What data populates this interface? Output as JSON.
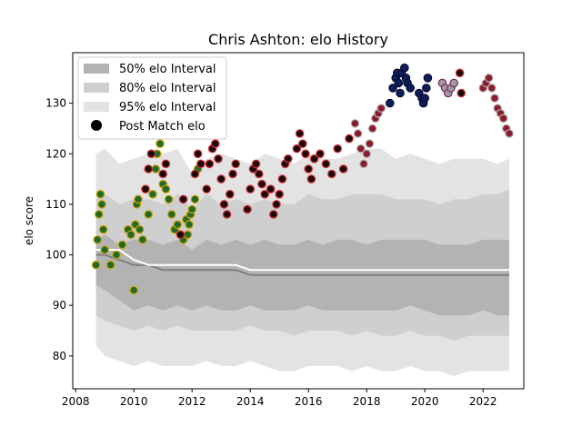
{
  "chart_data": {
    "type": "scatter",
    "title": "Chris Ashton: elo History",
    "xlabel": "",
    "ylabel": "elo score",
    "xlim": [
      2007.9,
      2023.4
    ],
    "ylim": [
      73.5,
      140.0
    ],
    "x_ticks": [
      2008,
      2010,
      2012,
      2014,
      2016,
      2018,
      2020,
      2022
    ],
    "y_ticks": [
      80,
      90,
      100,
      110,
      120,
      130
    ],
    "legend": {
      "placement": "top-left",
      "entries": [
        "50% elo Interval",
        "80% elo Interval",
        "95% elo Interval",
        "Post Match elo"
      ]
    },
    "colors": {
      "band_50": "#b3b3b3",
      "band_80": "#cfcfcf",
      "band_95": "#e3e3e3",
      "median": "#7f7f7f",
      "mean_line": "#ffffff",
      "green_fill": "#1f6b2a",
      "green_edge": "#d4a100",
      "black_fill": "#1a0a0a",
      "black_edge": "#d8323c",
      "maroon_fill": "#8c1c2c",
      "maroon_edge": "#b0b0b0",
      "navy_fill": "#0c1f5c",
      "navy_edge": "#0a0a2a",
      "grey_fill": "#9a9aa8",
      "grey_edge": "#7a2a4a"
    },
    "bands": {
      "x": [
        2008.7,
        2009.0,
        2009.5,
        2010.0,
        2010.5,
        2011.0,
        2011.5,
        2012.0,
        2012.5,
        2013.0,
        2013.5,
        2014.0,
        2014.5,
        2015.0,
        2015.5,
        2016.0,
        2016.5,
        2017.0,
        2017.5,
        2018.0,
        2018.5,
        2019.0,
        2019.5,
        2020.0,
        2020.5,
        2021.0,
        2021.5,
        2022.0,
        2022.5,
        2022.9
      ],
      "p95_upper": [
        120,
        121,
        118,
        119,
        120,
        120,
        121,
        116,
        119,
        120,
        119,
        118,
        120,
        119,
        118,
        120,
        119,
        119,
        120,
        121,
        121,
        119,
        120,
        119,
        118,
        119,
        119,
        119,
        118,
        119
      ],
      "p80_upper": [
        111,
        112,
        110,
        111,
        111,
        110,
        112,
        109,
        112,
        110,
        111,
        110,
        111,
        110,
        110,
        112,
        111,
        111,
        112,
        112,
        112,
        111,
        111,
        111,
        110,
        111,
        111,
        112,
        112,
        113
      ],
      "p50_upper": [
        103,
        104,
        102,
        103,
        103,
        102,
        103,
        101,
        103,
        102,
        103,
        102,
        103,
        102,
        102,
        103,
        102,
        103,
        103,
        102,
        103,
        103,
        103,
        103,
        102,
        102,
        102,
        103,
        103,
        103
      ],
      "p50_lower": [
        94,
        93,
        91,
        89,
        90,
        89,
        90,
        89,
        90,
        89,
        89,
        90,
        89,
        89,
        89,
        90,
        89,
        89,
        89,
        89,
        89,
        89,
        90,
        89,
        88,
        88,
        88,
        89,
        88,
        88
      ],
      "p80_lower": [
        88,
        87,
        86,
        85,
        86,
        85,
        86,
        85,
        85,
        85,
        85,
        86,
        85,
        85,
        84,
        85,
        85,
        85,
        84,
        85,
        84,
        84,
        85,
        84,
        84,
        83,
        84,
        84,
        84,
        84
      ],
      "p95_lower": [
        82,
        80,
        79,
        78,
        79,
        78,
        78,
        78,
        79,
        78,
        78,
        79,
        78,
        77,
        77,
        78,
        78,
        78,
        77,
        78,
        77,
        77,
        78,
        77,
        77,
        76,
        77,
        77,
        77,
        77
      ],
      "median": [
        100,
        100,
        99,
        98,
        98,
        97,
        97,
        97,
        97,
        97,
        97,
        96,
        96,
        96,
        96,
        96,
        96,
        96,
        96,
        96,
        96,
        96,
        96,
        96,
        96,
        96,
        96,
        96,
        96,
        96
      ],
      "mean": [
        101,
        101,
        101,
        99,
        98,
        98,
        98,
        98,
        98,
        98,
        98,
        97,
        97,
        97,
        97,
        97,
        97,
        97,
        97,
        97,
        97,
        97,
        97,
        97,
        97,
        97,
        97,
        97,
        97,
        97
      ]
    },
    "series": [
      {
        "style": "green",
        "x": [
          2008.7,
          2008.75,
          2008.8,
          2008.85,
          2008.9,
          2008.95,
          2009.0,
          2009.2,
          2009.4,
          2009.6,
          2009.8,
          2009.9,
          2010.0,
          2010.05,
          2010.1,
          2010.15,
          2010.2,
          2010.3,
          2010.5,
          2010.65,
          2010.75,
          2010.8,
          2010.9,
          2011.0,
          2011.1,
          2011.2,
          2011.3,
          2011.4,
          2011.5,
          2011.6,
          2011.7,
          2011.8,
          2011.85,
          2011.9,
          2011.95,
          2012.0,
          2012.1,
          2012.2
        ],
        "y": [
          98,
          103,
          108,
          112,
          110,
          105,
          101,
          98,
          100,
          102,
          105,
          104,
          93,
          106,
          110,
          111,
          105,
          103,
          108,
          112,
          117,
          120,
          122,
          114,
          113,
          111,
          108,
          105,
          106,
          104,
          103,
          107,
          104,
          106,
          108,
          109,
          111,
          117
        ]
      },
      {
        "style": "black",
        "x": [
          2010.4,
          2010.5,
          2010.6,
          2011.0,
          2011.1,
          2011.6,
          2011.7,
          2012.1,
          2012.2,
          2012.3,
          2012.5,
          2012.6,
          2012.7,
          2012.8,
          2012.9,
          2013.0,
          2013.1,
          2013.2,
          2013.3,
          2013.4,
          2013.5,
          2013.9,
          2014.0,
          2014.1,
          2014.2,
          2014.3,
          2014.4,
          2014.5,
          2014.7,
          2014.8,
          2014.9,
          2015.0,
          2015.1,
          2015.2,
          2015.3,
          2015.6,
          2015.7,
          2015.8,
          2015.9,
          2016.0,
          2016.1,
          2016.2,
          2016.4,
          2016.6,
          2016.8,
          2017.0,
          2017.2,
          2017.4
        ],
        "y": [
          113,
          117,
          120,
          116,
          118,
          104,
          111,
          116,
          120,
          118,
          113,
          118,
          121,
          122,
          119,
          115,
          110,
          108,
          112,
          116,
          118,
          109,
          113,
          117,
          118,
          116,
          114,
          112,
          113,
          108,
          110,
          112,
          115,
          118,
          119,
          121,
          124,
          122,
          120,
          117,
          115,
          119,
          120,
          118,
          116,
          121,
          117,
          123
        ]
      },
      {
        "style": "maroon",
        "x": [
          2017.6,
          2017.7,
          2017.8,
          2017.9,
          2018.0,
          2018.1,
          2018.2,
          2018.3,
          2018.4,
          2018.5
        ],
        "y": [
          126,
          124,
          121,
          118,
          120,
          122,
          125,
          127,
          128,
          129
        ]
      },
      {
        "style": "navy",
        "x": [
          2018.8,
          2018.9,
          2019.0,
          2019.05,
          2019.1,
          2019.15,
          2019.2,
          2019.3,
          2019.35,
          2019.4,
          2019.5,
          2019.8,
          2019.9,
          2019.95,
          2020.0,
          2020.05,
          2020.1
        ],
        "y": [
          130,
          133,
          135,
          136,
          134,
          132,
          136,
          137,
          135,
          134,
          133,
          132,
          131,
          130,
          131,
          133,
          135
        ]
      },
      {
        "style": "grey",
        "x": [
          2020.6,
          2020.7,
          2020.8,
          2020.9,
          2021.0
        ],
        "y": [
          134,
          133,
          132,
          133,
          134
        ]
      },
      {
        "style": "black",
        "x": [
          2021.2,
          2021.25
        ],
        "y": [
          136,
          132
        ]
      },
      {
        "style": "maroon",
        "x": [
          2022.0,
          2022.1,
          2022.2,
          2022.3,
          2022.4,
          2022.5,
          2022.6,
          2022.7,
          2022.8,
          2022.9
        ],
        "y": [
          133,
          134,
          135,
          133,
          131,
          129,
          128,
          127,
          125,
          124
        ]
      }
    ]
  }
}
